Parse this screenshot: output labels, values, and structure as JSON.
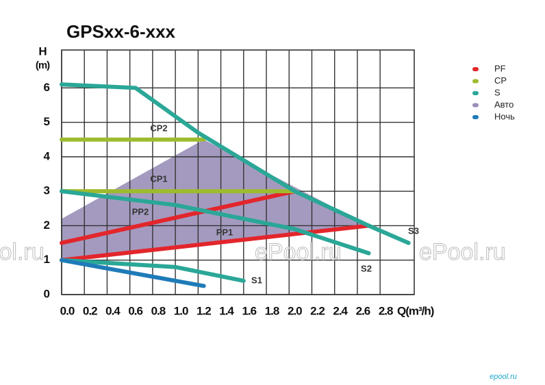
{
  "chart_data": {
    "type": "line",
    "title": "GPSxx-6-xxx",
    "y_label_top": "H",
    "y_label_unit": "(m)",
    "x_label": "Q(m³/h)",
    "xlim": [
      0,
      3.1
    ],
    "ylim": [
      0,
      7.1
    ],
    "xticks": [
      {
        "value": 0,
        "label": "0.0"
      },
      0.2,
      0.4,
      0.6,
      0.8,
      {
        "value": 1,
        "label": "1.0"
      },
      1.2,
      1.4,
      1.6,
      1.8,
      {
        "value": 2,
        "label": "2.0"
      },
      2.2,
      2.4,
      2.6,
      2.8
    ],
    "yticks": [
      0,
      1,
      2,
      3,
      4,
      5,
      6
    ],
    "grid": true,
    "legend": "right",
    "series": [
      {
        "name": "PF",
        "color": "#e2262c",
        "curves": [
          {
            "label": "PP1",
            "x": [
              0,
              2.7
            ],
            "y": [
              1.0,
              2.0
            ]
          },
          {
            "label": "PP2",
            "x": [
              0,
              2.05
            ],
            "y": [
              1.5,
              3.0
            ]
          }
        ]
      },
      {
        "name": "CP",
        "color": "#9dbb2f",
        "curves": [
          {
            "label": "CP1",
            "x": [
              0,
              2.05
            ],
            "y": [
              3.0,
              3.0
            ]
          },
          {
            "label": "CP2",
            "x": [
              0,
              1.25
            ],
            "y": [
              4.5,
              4.5
            ]
          }
        ]
      },
      {
        "name": "S",
        "color": "#2aa797",
        "curves": [
          {
            "label": "S1",
            "x": [
              0,
              1.0,
              1.6
            ],
            "y": [
              1.0,
              0.8,
              0.4
            ]
          },
          {
            "label": "S2",
            "x": [
              0,
              1.0,
              2.05,
              2.7
            ],
            "y": [
              3.0,
              2.6,
              1.9,
              1.2
            ]
          },
          {
            "label": "S3",
            "x": [
              0,
              0.65,
              1.2,
              2.05,
              2.7,
              3.05
            ],
            "y": [
              6.1,
              6.0,
              4.7,
              3.0,
              2.0,
              1.5
            ]
          }
        ]
      },
      {
        "name": "Авто",
        "color": "#9a8fb8",
        "area": true,
        "x": [
          0,
          1.25,
          2.7,
          0
        ],
        "y": [
          2.2,
          4.5,
          2.0,
          1.0
        ]
      },
      {
        "name": "Ночь",
        "color": "#1f7bb8",
        "curves": [
          {
            "x": [
              0,
              1.25
            ],
            "y": [
              1.0,
              0.25
            ]
          }
        ]
      }
    ],
    "watermark": [
      "ePool.ru",
      "ePool.ru",
      "ePool.ru"
    ],
    "logo": "epool.ru"
  }
}
